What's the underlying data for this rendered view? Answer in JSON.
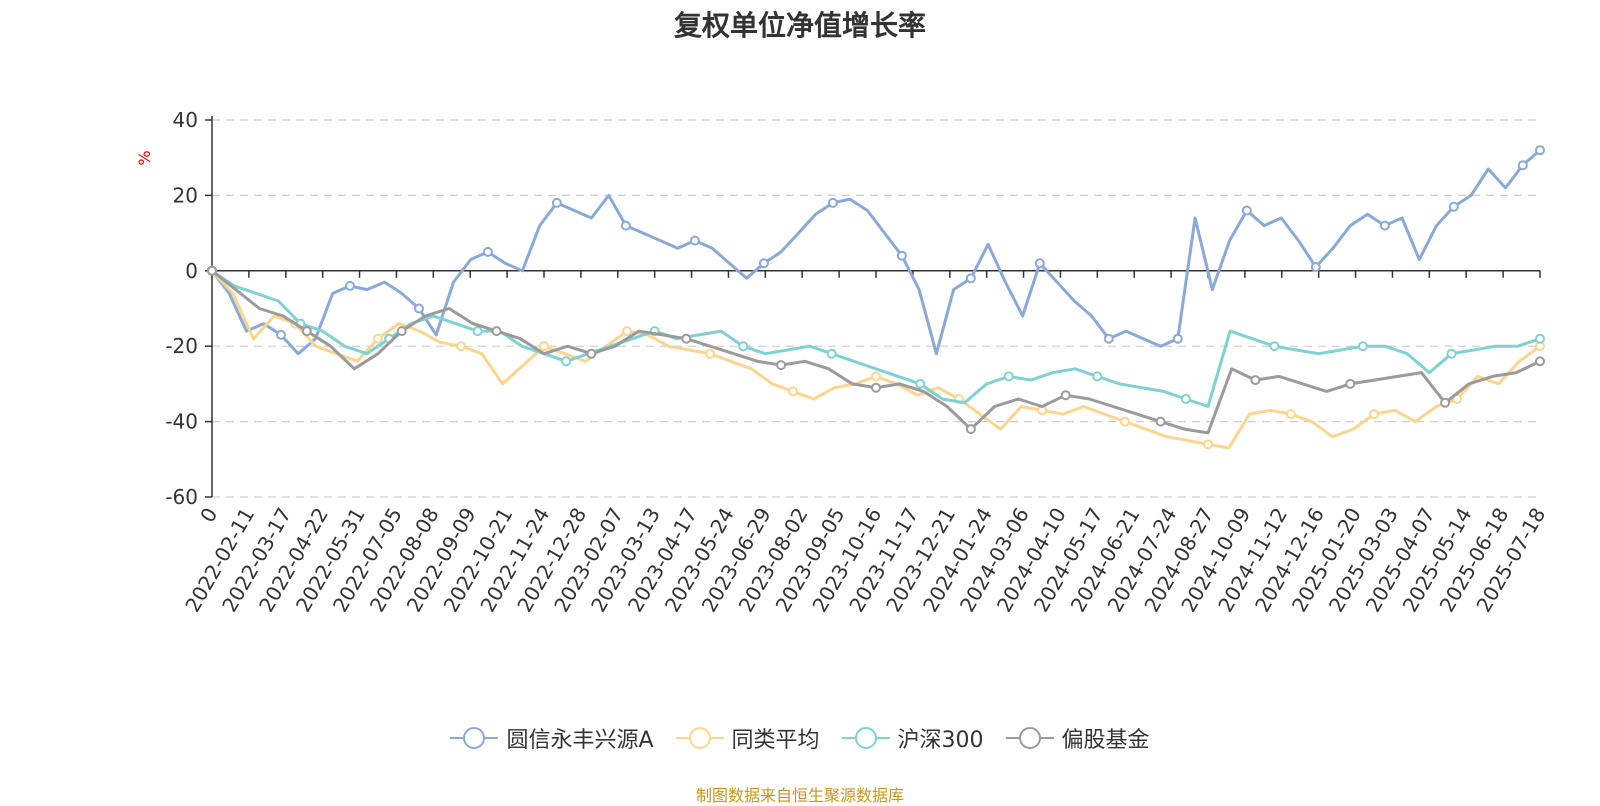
{
  "title": "复权单位净值增长率",
  "source_note": "制图数据来自恒生聚源数据库",
  "chart_data": {
    "type": "line",
    "ylabel": "%",
    "ylim": [
      -60,
      40
    ],
    "yticks": [
      40,
      20,
      0,
      -20,
      -40,
      -60
    ],
    "grid": true,
    "legend_position": "bottom-center",
    "x_tick_labels": [
      "0",
      "2022-02-11",
      "2022-03-17",
      "2022-04-22",
      "2022-05-31",
      "2022-07-05",
      "2022-08-08",
      "2022-09-09",
      "2022-10-21",
      "2022-11-24",
      "2022-12-28",
      "2023-02-07",
      "2023-03-13",
      "2023-04-17",
      "2023-05-24",
      "2023-06-29",
      "2023-08-02",
      "2023-09-05",
      "2023-10-16",
      "2023-11-17",
      "2023-12-21",
      "2024-01-24",
      "2024-03-06",
      "2024-04-10",
      "2024-05-17",
      "2024-06-21",
      "2024-07-24",
      "2024-08-27",
      "2024-10-09",
      "2024-11-12",
      "2024-12-16",
      "2025-01-20",
      "2025-03-03",
      "2025-04-07",
      "2025-05-14",
      "2025-06-18",
      "2025-07-18"
    ],
    "series": [
      {
        "name": "圆信永丰兴源A",
        "color": "#8aa9d8",
        "values": [
          0,
          -6,
          -16,
          -14,
          -17,
          -22,
          -18,
          -6,
          -4,
          -5,
          -3,
          -6,
          -10,
          -17,
          -3,
          3,
          5,
          2,
          0,
          12,
          18,
          16,
          14,
          20,
          12,
          10,
          8,
          6,
          8,
          6,
          2,
          -2,
          2,
          5,
          10,
          15,
          18,
          19,
          16,
          10,
          4,
          -5,
          -22,
          -5,
          -2,
          7,
          -3,
          -12,
          2,
          -3,
          -8,
          -12,
          -18,
          -16,
          -18,
          -20,
          -18,
          14,
          -5,
          8,
          16,
          12,
          14,
          8,
          1,
          6,
          12,
          15,
          12,
          14,
          3,
          12,
          17,
          20,
          27,
          22,
          28,
          32
        ]
      },
      {
        "name": "同类平均",
        "color": "#fcd58e",
        "values": [
          0,
          -6,
          -18,
          -12,
          -14,
          -20,
          -22,
          -24,
          -18,
          -14,
          -16,
          -19,
          -20,
          -22,
          -30,
          -25,
          -20,
          -22,
          -24,
          -20,
          -16,
          -17,
          -20,
          -21,
          -22,
          -24,
          -26,
          -30,
          -32,
          -34,
          -31,
          -30,
          -28,
          -30,
          -33,
          -31,
          -34,
          -38,
          -42,
          -36,
          -37,
          -38,
          -36,
          -38,
          -40,
          -42,
          -44,
          -45,
          -46,
          -47,
          -38,
          -37,
          -38,
          -40,
          -44,
          -42,
          -38,
          -37,
          -40,
          -36,
          -34,
          -28,
          -30,
          -24,
          -20
        ]
      },
      {
        "name": "沪深300",
        "color": "#7fd2d2",
        "values": [
          0,
          -4,
          -6,
          -8,
          -14,
          -16,
          -20,
          -22,
          -18,
          -14,
          -12,
          -14,
          -16,
          -16,
          -20,
          -22,
          -24,
          -22,
          -20,
          -18,
          -16,
          -18,
          -17,
          -16,
          -20,
          -22,
          -21,
          -20,
          -22,
          -24,
          -26,
          -28,
          -30,
          -34,
          -35,
          -30,
          -28,
          -29,
          -27,
          -26,
          -28,
          -30,
          -31,
          -32,
          -34,
          -36,
          -16,
          -18,
          -20,
          -21,
          -22,
          -21,
          -20,
          -20,
          -22,
          -27,
          -22,
          -21,
          -20,
          -20,
          -18
        ]
      },
      {
        "name": "偏股基金",
        "color": "#9b9b9b",
        "values": [
          0,
          -5,
          -10,
          -12,
          -16,
          -20,
          -26,
          -22,
          -16,
          -12,
          -10,
          -14,
          -16,
          -18,
          -22,
          -20,
          -22,
          -20,
          -16,
          -17,
          -18,
          -20,
          -22,
          -24,
          -25,
          -24,
          -26,
          -30,
          -31,
          -30,
          -32,
          -36,
          -42,
          -36,
          -34,
          -36,
          -33,
          -34,
          -36,
          -38,
          -40,
          -42,
          -43,
          -26,
          -29,
          -28,
          -30,
          -32,
          -30,
          -29,
          -28,
          -27,
          -35,
          -30,
          -28,
          -27,
          -24
        ]
      }
    ]
  }
}
